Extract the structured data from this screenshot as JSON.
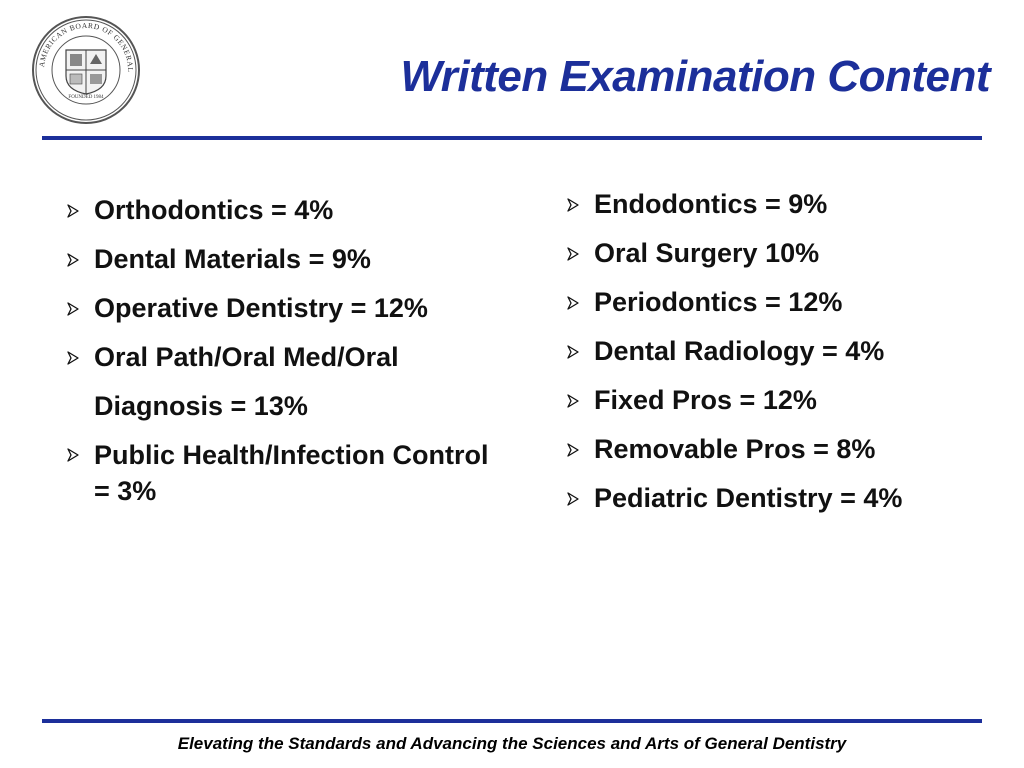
{
  "slide": {
    "title": "Written Examination Content",
    "logo_icon": "agd-seal-icon",
    "accent_color": "#1c2f9a",
    "bullet_icon": "arrowhead-bullet-icon",
    "left_items": [
      "Orthodontics = 4%",
      "Dental Materials = 9%",
      "Operative Dentistry = 12%",
      "Oral Path/Oral Med/Oral Diagnosis = 13%",
      "Public Health/Infection Control = 3%"
    ],
    "right_items": [
      "Endodontics = 9%",
      "Oral Surgery 10%",
      "Periodontics = 12%",
      "Dental Radiology = 4%",
      "Fixed Pros = 12%",
      "Removable Pros = 8%",
      "Pediatric Dentistry = 4%"
    ],
    "footer": "Elevating the Standards and Advancing the Sciences and Arts of General Dentistry"
  },
  "logo": {
    "ring_text": "AMERICAN BOARD OF GENERAL DENTISTRY",
    "founded_text": "FOUNDED 1984"
  }
}
